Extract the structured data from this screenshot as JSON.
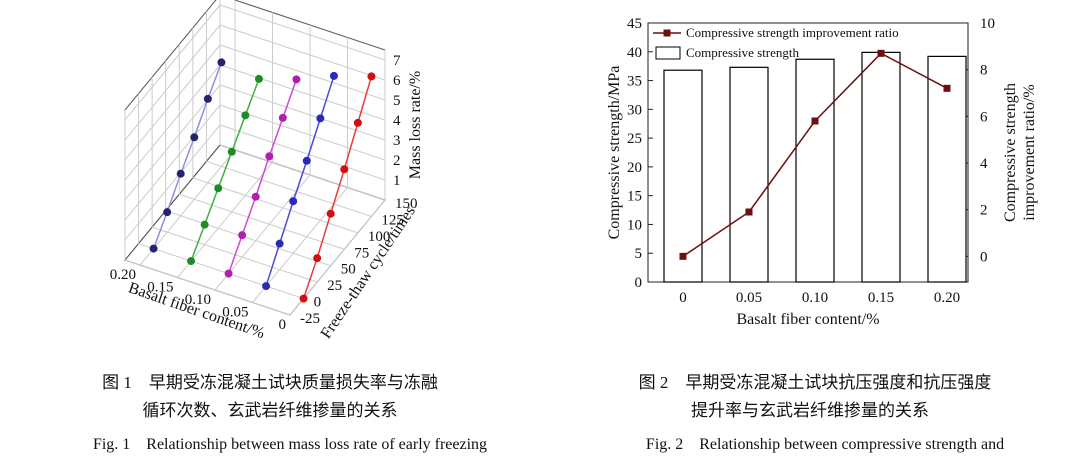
{
  "chart_data": [
    {
      "type": "scatter3d",
      "xlabel": "Basalt fiber content/%",
      "ylabel": "Freeze-thaw cycle/times",
      "zlabel": "Mass loss rate/%",
      "xlim": [
        0,
        0.22
      ],
      "xticks": [
        {
          "value": 0.2,
          "label": "0.20"
        },
        {
          "value": 0.15,
          "label": "0.15"
        },
        {
          "value": 0.1,
          "label": "0.10"
        },
        {
          "value": 0.05,
          "label": "0.05"
        },
        0
      ],
      "ylim": [
        -25,
        150
      ],
      "yticks": [
        -25,
        0,
        25,
        50,
        75,
        100,
        125,
        150
      ],
      "zlim": [
        0,
        7.5
      ],
      "zticks": [
        1,
        2,
        3,
        4,
        5,
        6,
        7
      ],
      "x": [
        0,
        25,
        50,
        75,
        100,
        125
      ],
      "series": [
        {
          "fiber": 0.2,
          "color": "#8f8fe0",
          "marker_color": "#24246e",
          "values": [
            0,
            1.0,
            2.1,
            3.1,
            4.2,
            5.2
          ]
        },
        {
          "fiber": 0.15,
          "color": "#3cb043",
          "marker_color": "#1f8a2a",
          "values": [
            0,
            1.0,
            2.0,
            3.0,
            4.0,
            5.0
          ]
        },
        {
          "fiber": 0.1,
          "color": "#d04ad0",
          "marker_color": "#b020b0",
          "values": [
            0,
            1.1,
            2.2,
            3.4,
            4.5,
            5.6
          ]
        },
        {
          "fiber": 0.05,
          "color": "#4a4ad8",
          "marker_color": "#2a2ab8",
          "values": [
            0,
            1.3,
            2.6,
            3.8,
            5.1,
            6.4
          ]
        },
        {
          "fiber": 0,
          "color": "#e83a3a",
          "marker_color": "#d01010",
          "values": [
            0,
            1.2,
            2.6,
            4.0,
            5.5,
            7.0
          ]
        }
      ]
    },
    {
      "type": "bar_line",
      "xlabel": "Basalt fiber content/%",
      "ylabel": "Compressive strength/MPa",
      "y2label": [
        "Compressive strength",
        "improvement ratio/%"
      ],
      "categories": [
        "0",
        "0.05",
        "0.10",
        "0.15",
        "0.20"
      ],
      "ylim": [
        0,
        45
      ],
      "yticks": [
        0,
        5,
        10,
        15,
        20,
        25,
        30,
        35,
        40,
        45
      ],
      "y2lim": [
        -1.1,
        10
      ],
      "y2ticks": [
        0,
        2,
        4,
        6,
        8,
        10
      ],
      "series": [
        {
          "name": "Compressive strength improvement ratio",
          "type": "line",
          "axis": "y2",
          "color": "#6b0f0f",
          "values": [
            0,
            1.9,
            5.8,
            8.7,
            7.2
          ]
        },
        {
          "name": "Compressive strength",
          "type": "bar",
          "color": "#000000",
          "values": [
            36.8,
            37.3,
            38.7,
            39.9,
            39.2
          ]
        }
      ]
    }
  ],
  "captions": [
    [
      "图 1　早期受冻混凝土试块质量损失率与冻融",
      "循环次数、玄武岩纤维掺量的关系",
      "Fig. 1　Relationship between mass loss rate of early freezing"
    ],
    [
      "图 2　早期受冻混凝土试块抗压强度和抗压强度",
      "提升率与玄武岩纤维掺量的关系",
      "Fig. 2　Relationship between compressive strength and"
    ]
  ]
}
